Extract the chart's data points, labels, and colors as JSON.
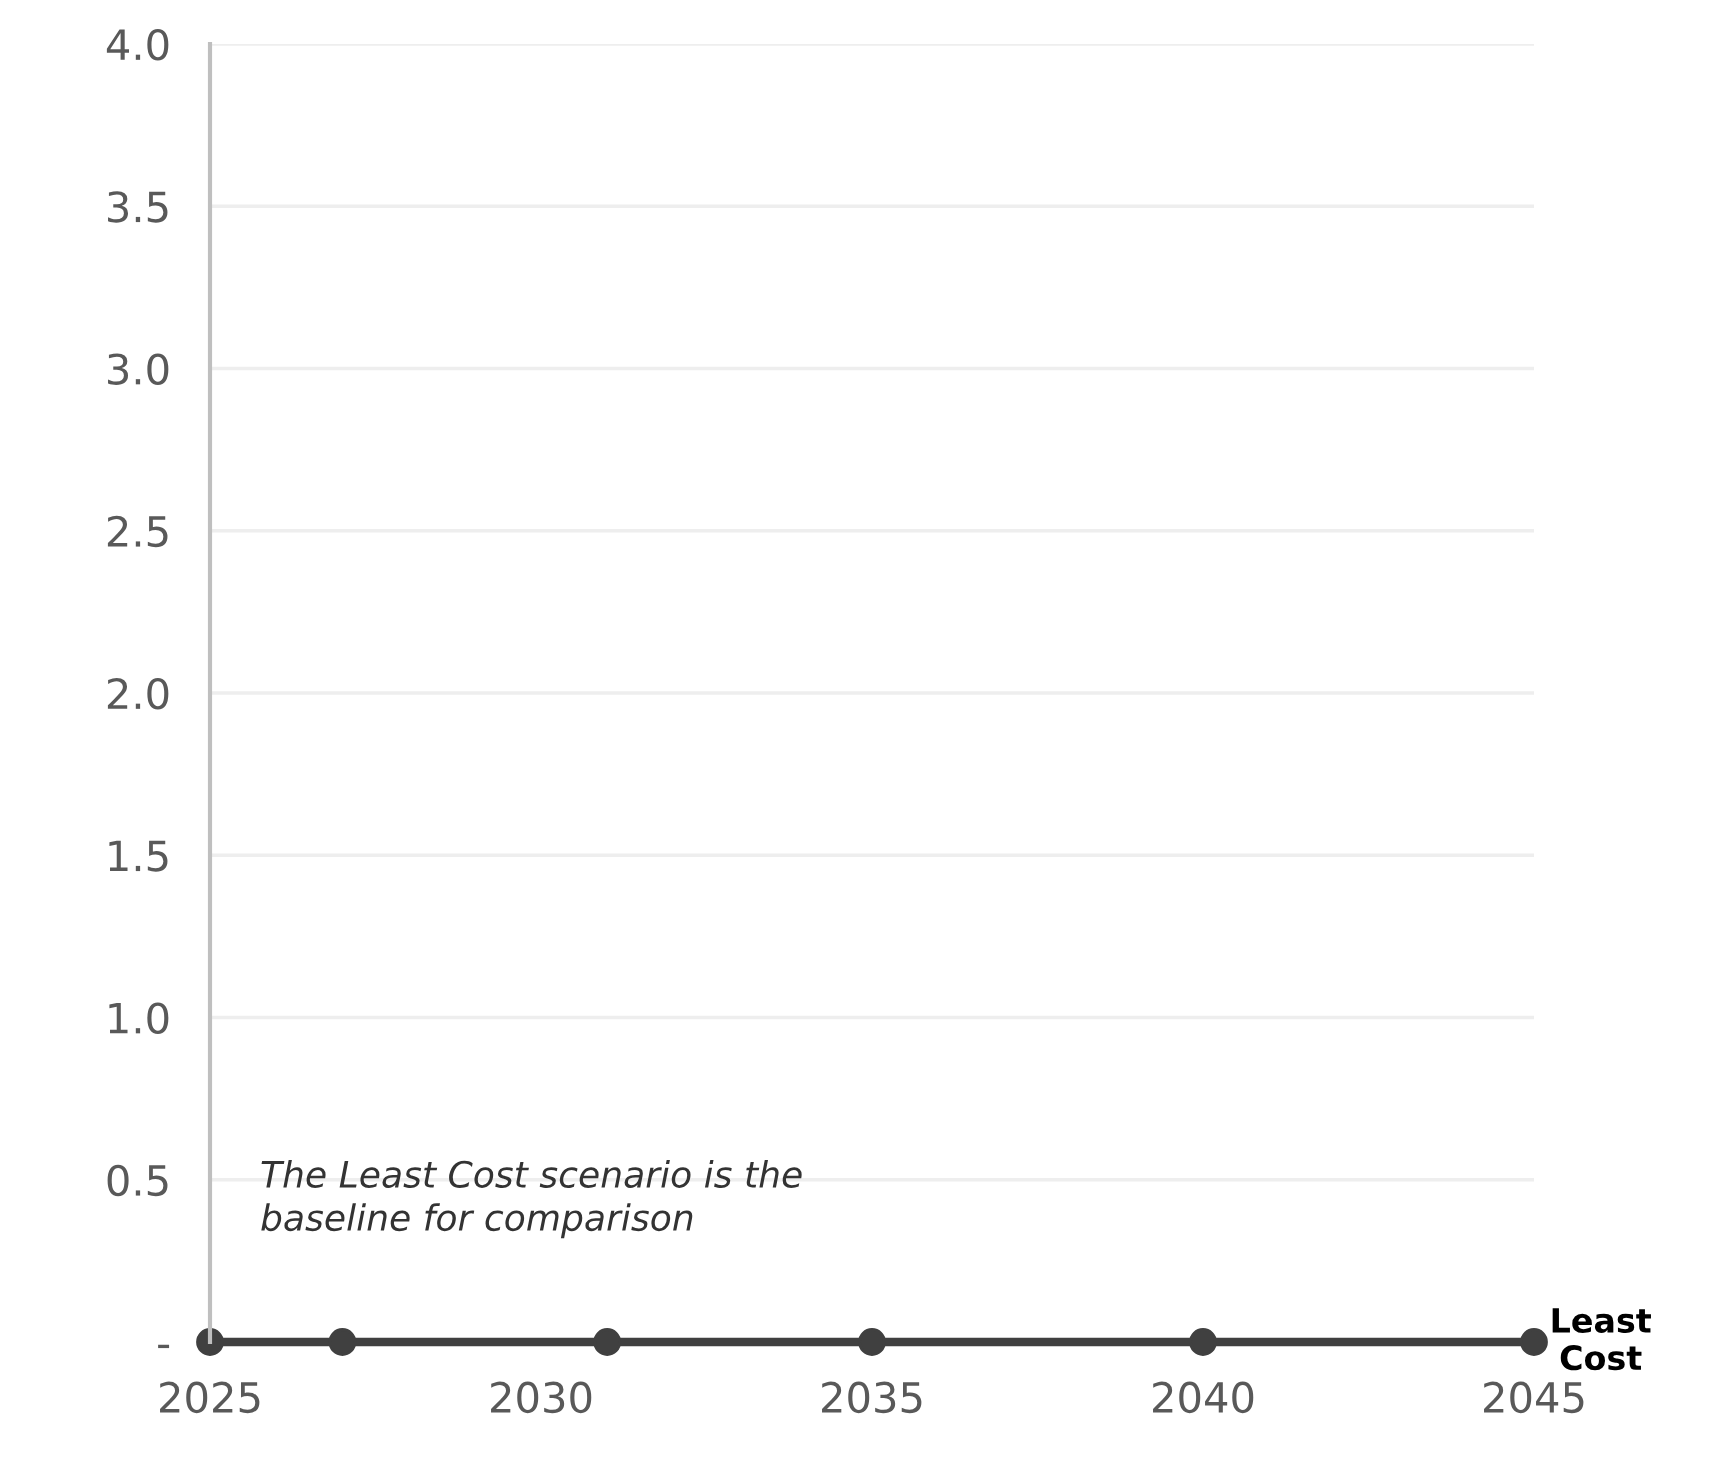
{
  "chart_data": {
    "type": "line",
    "x": [
      2025,
      2027,
      2031,
      2035,
      2040,
      2045
    ],
    "series": [
      {
        "name": "Least Cost",
        "color": "#404040",
        "values": [
          0,
          0,
          0,
          0,
          0,
          0
        ]
      }
    ],
    "xlim": [
      2025,
      2045
    ],
    "xticks": [
      2025,
      2030,
      2035,
      2040,
      2045
    ],
    "ylim": [
      0,
      4
    ],
    "yticks": [
      {
        "value": 0,
        "label": "-"
      },
      0.5,
      {
        "value": 1,
        "label": "1.0"
      },
      1.5,
      {
        "value": 2,
        "label": "2.0"
      },
      2.5,
      {
        "value": 3,
        "label": "3.0"
      },
      3.5,
      {
        "value": 4,
        "label": "4.0"
      }
    ],
    "grid": "y",
    "marker": "circle",
    "line_style": "solid",
    "legend": false,
    "annotations": [
      "The Least Cost scenario is the baseline for comparison"
    ]
  }
}
